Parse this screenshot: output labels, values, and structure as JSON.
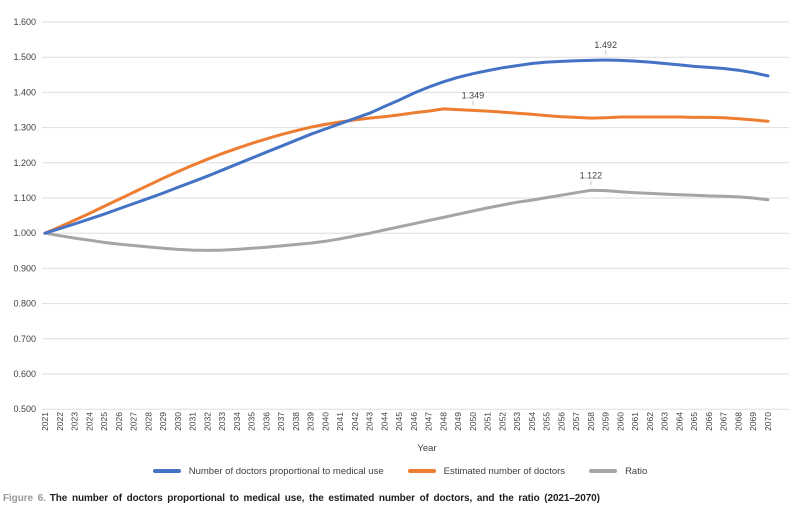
{
  "figure": {
    "label": "Figure 6.",
    "label_color": "#9a9a9a",
    "caption": "The number of doctors proportional to medical use, the estimated number of doctors, and the ratio (2021–2070)"
  },
  "chart_data": {
    "type": "line",
    "xlabel": "Year",
    "ylim": [
      0.5,
      1.6
    ],
    "ytick_step": 0.1,
    "grid": "horizontal",
    "legend_position": "bottom",
    "style": {
      "grid_color": "#dedede",
      "tick_color": "#404040",
      "annotation_tick_color": "#c9c9c9"
    },
    "yticks": [
      "0.500",
      "0.600",
      "0.700",
      "0.800",
      "0.900",
      "1.000",
      "1.100",
      "1.200",
      "1.300",
      "1.400",
      "1.500",
      "1.600"
    ],
    "x": [
      2021,
      2022,
      2023,
      2024,
      2025,
      2026,
      2027,
      2028,
      2029,
      2030,
      2031,
      2032,
      2033,
      2034,
      2035,
      2036,
      2037,
      2038,
      2039,
      2040,
      2041,
      2042,
      2043,
      2044,
      2045,
      2046,
      2047,
      2048,
      2049,
      2050,
      2051,
      2052,
      2053,
      2054,
      2055,
      2056,
      2057,
      2058,
      2059,
      2060,
      2061,
      2062,
      2063,
      2064,
      2065,
      2066,
      2067,
      2068,
      2069,
      2070
    ],
    "series": [
      {
        "id": "proportional",
        "name": "Number of doctors proportional to medical use",
        "color": "#4472C4",
        "values": [
          1.0,
          1.013,
          1.026,
          1.04,
          1.054,
          1.069,
          1.084,
          1.099,
          1.114,
          1.13,
          1.146,
          1.162,
          1.179,
          1.196,
          1.213,
          1.23,
          1.247,
          1.264,
          1.281,
          1.296,
          1.311,
          1.326,
          1.341,
          1.36,
          1.378,
          1.398,
          1.415,
          1.43,
          1.443,
          1.453,
          1.462,
          1.47,
          1.476,
          1.482,
          1.486,
          1.488,
          1.49,
          1.491,
          1.492,
          1.491,
          1.489,
          1.486,
          1.482,
          1.478,
          1.474,
          1.471,
          1.468,
          1.463,
          1.456,
          1.447
        ]
      },
      {
        "id": "estimated",
        "name": "Estimated number of doctors",
        "color": "#ED7D31",
        "values": [
          1.0,
          1.018,
          1.037,
          1.056,
          1.076,
          1.096,
          1.116,
          1.136,
          1.156,
          1.175,
          1.193,
          1.21,
          1.226,
          1.241,
          1.255,
          1.268,
          1.28,
          1.291,
          1.301,
          1.309,
          1.316,
          1.322,
          1.327,
          1.331,
          1.336,
          1.342,
          1.347,
          1.353,
          1.351,
          1.349,
          1.347,
          1.344,
          1.341,
          1.338,
          1.334,
          1.331,
          1.329,
          1.327,
          1.328,
          1.33,
          1.33,
          1.33,
          1.33,
          1.33,
          1.329,
          1.329,
          1.328,
          1.325,
          1.322,
          1.318
        ]
      },
      {
        "id": "ratio",
        "name": "Ratio",
        "color": "#A5A5A5",
        "values": [
          1.0,
          0.993,
          0.986,
          0.98,
          0.974,
          0.969,
          0.965,
          0.961,
          0.957,
          0.954,
          0.952,
          0.951,
          0.952,
          0.954,
          0.957,
          0.96,
          0.964,
          0.968,
          0.972,
          0.977,
          0.984,
          0.992,
          1.0,
          1.009,
          1.018,
          1.027,
          1.036,
          1.045,
          1.054,
          1.063,
          1.072,
          1.08,
          1.088,
          1.094,
          1.101,
          1.108,
          1.115,
          1.122,
          1.121,
          1.118,
          1.115,
          1.113,
          1.111,
          1.109,
          1.108,
          1.106,
          1.105,
          1.103,
          1.1,
          1.095
        ]
      }
    ],
    "annotations": [
      {
        "series_index": 0,
        "year": 2059,
        "label": "1.492"
      },
      {
        "series_index": 1,
        "year": 2050,
        "label": "1.349"
      },
      {
        "series_index": 2,
        "year": 2058,
        "label": "1.122"
      }
    ]
  }
}
